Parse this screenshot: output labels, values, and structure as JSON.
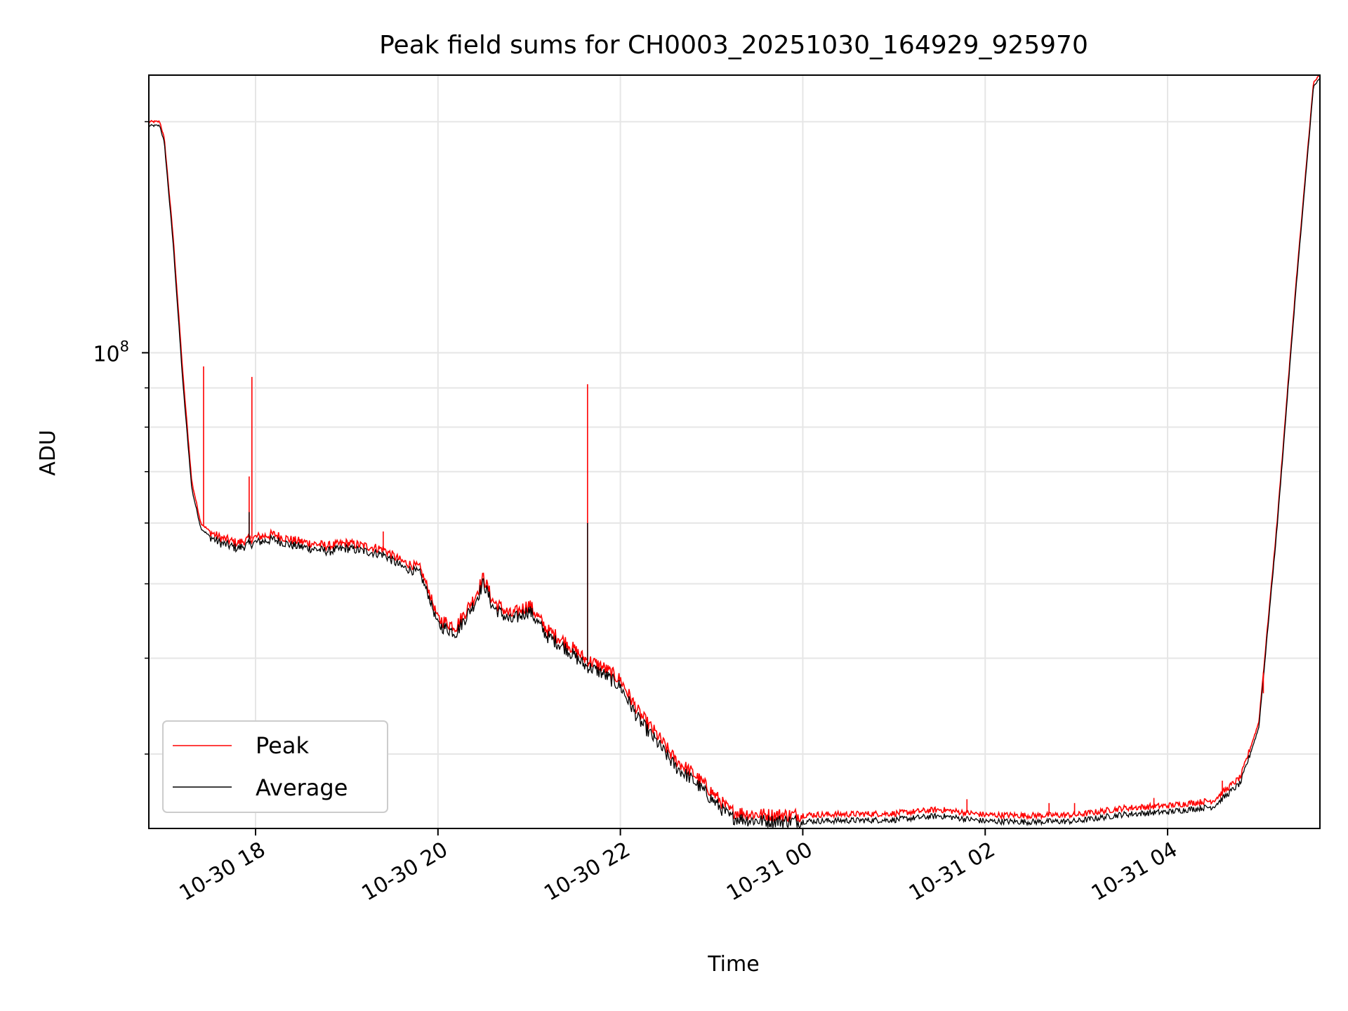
{
  "chart_data": {
    "type": "line",
    "title": "Peak field sums for CH0003_20251030_164929_925970",
    "xlabel": "Time",
    "ylabel": "ADU",
    "yscale": "log",
    "ylim": [
      24000000,
      230000000
    ],
    "xlim_hours": [
      16.83,
      29.67
    ],
    "x_unit": "hours since 2025-10-30 00:00",
    "ytick_major": {
      "value": 100000000,
      "label_base": "10",
      "label_exp": "8"
    },
    "ytick_minor_values": [
      30000000,
      40000000,
      50000000,
      60000000,
      70000000,
      80000000,
      90000000,
      200000000
    ],
    "xticks": [
      {
        "hour": 18,
        "label": "10-30 18"
      },
      {
        "hour": 20,
        "label": "10-30 20"
      },
      {
        "hour": 22,
        "label": "10-30 22"
      },
      {
        "hour": 24,
        "label": "10-31 00"
      },
      {
        "hour": 26,
        "label": "10-31 02"
      },
      {
        "hour": 28,
        "label": "10-31 04"
      }
    ],
    "grid": true,
    "legend": {
      "position": "lower-left",
      "entries": [
        "Peak",
        "Average"
      ]
    },
    "series": [
      {
        "name": "Peak",
        "color": "#ff0000",
        "x": [
          16.83,
          16.95,
          17.0,
          17.1,
          17.2,
          17.3,
          17.4,
          17.5,
          17.6,
          17.7,
          17.8,
          18.0,
          18.2,
          18.4,
          18.6,
          18.8,
          19.0,
          19.2,
          19.4,
          19.6,
          19.8,
          19.9,
          20.0,
          20.2,
          20.4,
          20.5,
          20.6,
          20.8,
          21.0,
          21.2,
          21.4,
          21.6,
          21.8,
          22.0,
          22.2,
          22.4,
          22.6,
          22.8,
          23.0,
          23.2,
          23.4,
          23.6,
          23.8,
          24.0,
          24.5,
          25.0,
          25.5,
          26.0,
          26.5,
          27.0,
          27.5,
          28.0,
          28.5,
          28.8,
          29.0,
          29.2,
          29.4,
          29.6,
          29.67
        ],
        "y": [
          200000000,
          200000000,
          190000000,
          140000000,
          95000000,
          68000000,
          60000000,
          58500000,
          57500000,
          57000000,
          56500000,
          57500000,
          58000000,
          57000000,
          56500000,
          56000000,
          56500000,
          56000000,
          55500000,
          53500000,
          52500000,
          49000000,
          45000000,
          44000000,
          48000000,
          51000000,
          47500000,
          45500000,
          47000000,
          43500000,
          42000000,
          40000000,
          39000000,
          37500000,
          34000000,
          31800000,
          29500000,
          28300000,
          26800000,
          25300000,
          25100000,
          25000000,
          25000000,
          25000000,
          25050000,
          25100000,
          25400000,
          25000000,
          24950000,
          25000000,
          25500000,
          25700000,
          26100000,
          28000000,
          33000000,
          60000000,
          120000000,
          225000000,
          230000000
        ]
      },
      {
        "name": "Average",
        "color": "#000000",
        "x": [
          16.83,
          16.95,
          17.0,
          17.1,
          17.2,
          17.3,
          17.4,
          17.5,
          17.6,
          17.7,
          17.8,
          18.0,
          18.2,
          18.4,
          18.6,
          18.8,
          19.0,
          19.2,
          19.4,
          19.6,
          19.8,
          19.9,
          20.0,
          20.2,
          20.4,
          20.5,
          20.6,
          20.8,
          21.0,
          21.2,
          21.4,
          21.6,
          21.8,
          22.0,
          22.2,
          22.4,
          22.6,
          22.8,
          23.0,
          23.2,
          23.4,
          23.6,
          23.8,
          24.0,
          24.5,
          25.0,
          25.5,
          26.0,
          26.5,
          27.0,
          27.5,
          28.0,
          28.5,
          28.8,
          29.0,
          29.2,
          29.4,
          29.6,
          29.67
        ],
        "y": [
          199000000,
          199000000,
          189000000,
          138000000,
          93000000,
          67000000,
          59500000,
          58000000,
          57000000,
          56500000,
          56000000,
          57000000,
          57500000,
          56500000,
          56000000,
          55500000,
          56000000,
          55500000,
          55000000,
          53000000,
          52000000,
          48500000,
          44500000,
          43500000,
          47500000,
          50500000,
          47000000,
          45000000,
          46500000,
          43000000,
          41500000,
          39500000,
          38500000,
          37000000,
          33500000,
          31300000,
          29100000,
          27900000,
          26400000,
          25000000,
          24800000,
          24700000,
          24700000,
          24700000,
          24750000,
          24800000,
          25100000,
          24700000,
          24650000,
          24700000,
          25200000,
          25400000,
          25800000,
          27700000,
          32700000,
          59500000,
          119000000,
          224000000,
          229000000
        ]
      }
    ],
    "peak_spikes": [
      {
        "x": 17.43,
        "y": 96000000
      },
      {
        "x": 17.93,
        "y": 69000000
      },
      {
        "x": 17.96,
        "y": 93000000
      },
      {
        "x": 21.64,
        "y": 91000000
      },
      {
        "x": 19.4,
        "y": 58500000
      },
      {
        "x": 25.8,
        "y": 26200000
      },
      {
        "x": 26.7,
        "y": 25900000
      },
      {
        "x": 26.98,
        "y": 25900000
      },
      {
        "x": 27.85,
        "y": 26300000
      },
      {
        "x": 28.6,
        "y": 27700000
      },
      {
        "x": 29.05,
        "y": 36000000
      }
    ],
    "average_spikes": [
      {
        "x": 21.64,
        "y": 60000000
      },
      {
        "x": 17.93,
        "y": 62000000
      }
    ]
  }
}
